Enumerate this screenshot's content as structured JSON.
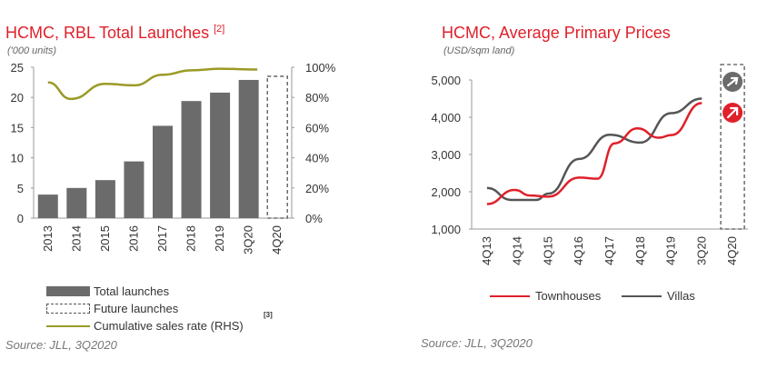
{
  "chart_data": [
    {
      "type": "bar",
      "title": "HCMC, RBL Total Launches",
      "title_note": "[2]",
      "unit": "('000 units)",
      "categories": [
        "2013",
        "2014",
        "2015",
        "2016",
        "2017",
        "2018",
        "2019",
        "3Q20",
        "4Q20"
      ],
      "left_axis": {
        "ylim": [
          0,
          25
        ],
        "ticks": [
          "0",
          "5",
          "10",
          "15",
          "20",
          "25"
        ]
      },
      "right_axis": {
        "ylim": [
          0,
          100
        ],
        "ticks": [
          "0%",
          "20%",
          "40%",
          "60%",
          "80%",
          "100%"
        ]
      },
      "series": [
        {
          "name": "Total launches",
          "kind": "bar",
          "color": "#6b6b6b",
          "values": [
            3.9,
            5.0,
            6.3,
            9.4,
            15.3,
            19.4,
            20.8,
            22.9,
            null
          ]
        },
        {
          "name": "Future launches",
          "kind": "dashed-bar",
          "color": "#555555",
          "values": [
            null,
            null,
            null,
            null,
            null,
            null,
            null,
            null,
            23.5
          ]
        },
        {
          "name": "Cumulative sales rate (RHS)",
          "kind": "line",
          "axis": "right",
          "color": "#9a9a26",
          "points": [
            [
              0,
              90
            ],
            [
              0.8,
              79
            ],
            [
              2,
              89
            ],
            [
              3,
              88
            ],
            [
              4,
              95
            ],
            [
              5,
              98
            ],
            [
              6,
              99
            ],
            [
              7.3,
              98.5
            ]
          ]
        }
      ],
      "legend_note": "[3]",
      "source": "Source: JLL, 3Q2020"
    },
    {
      "type": "line",
      "title": "HCMC, Average Primary Prices",
      "unit": "(USD/sqm land)",
      "categories": [
        "4Q13",
        "4Q14",
        "4Q15",
        "4Q16",
        "4Q17",
        "4Q18",
        "4Q19",
        "3Q20",
        "4Q20"
      ],
      "yaxis": {
        "ylim": [
          1000,
          5000
        ],
        "ticks": [
          "1,000",
          "2,000",
          "3,000",
          "4,000",
          "5,000"
        ]
      },
      "series": [
        {
          "name": "Townhouses",
          "color": "#e0202a",
          "points": [
            [
              0,
              1670
            ],
            [
              0.9,
              2050
            ],
            [
              1.4,
              1900
            ],
            [
              2,
              1870
            ],
            [
              3,
              2380
            ],
            [
              3.6,
              2350
            ],
            [
              4.15,
              3300
            ],
            [
              4.9,
              3700
            ],
            [
              5.6,
              3450
            ],
            [
              6,
              3520
            ],
            [
              7,
              4380
            ]
          ]
        },
        {
          "name": "Villas",
          "color": "#555555",
          "points": [
            [
              0,
              2100
            ],
            [
              0.8,
              1780
            ],
            [
              1.6,
              1780
            ],
            [
              2,
              1950
            ],
            [
              3,
              2880
            ],
            [
              4,
              3530
            ],
            [
              5,
              3320
            ],
            [
              6,
              4110
            ],
            [
              7,
              4500
            ]
          ]
        }
      ],
      "outlook_icons": [
        "right-arrow-icon",
        "up-arrow-icon"
      ],
      "source": "Source: JLL, 3Q2020"
    }
  ]
}
